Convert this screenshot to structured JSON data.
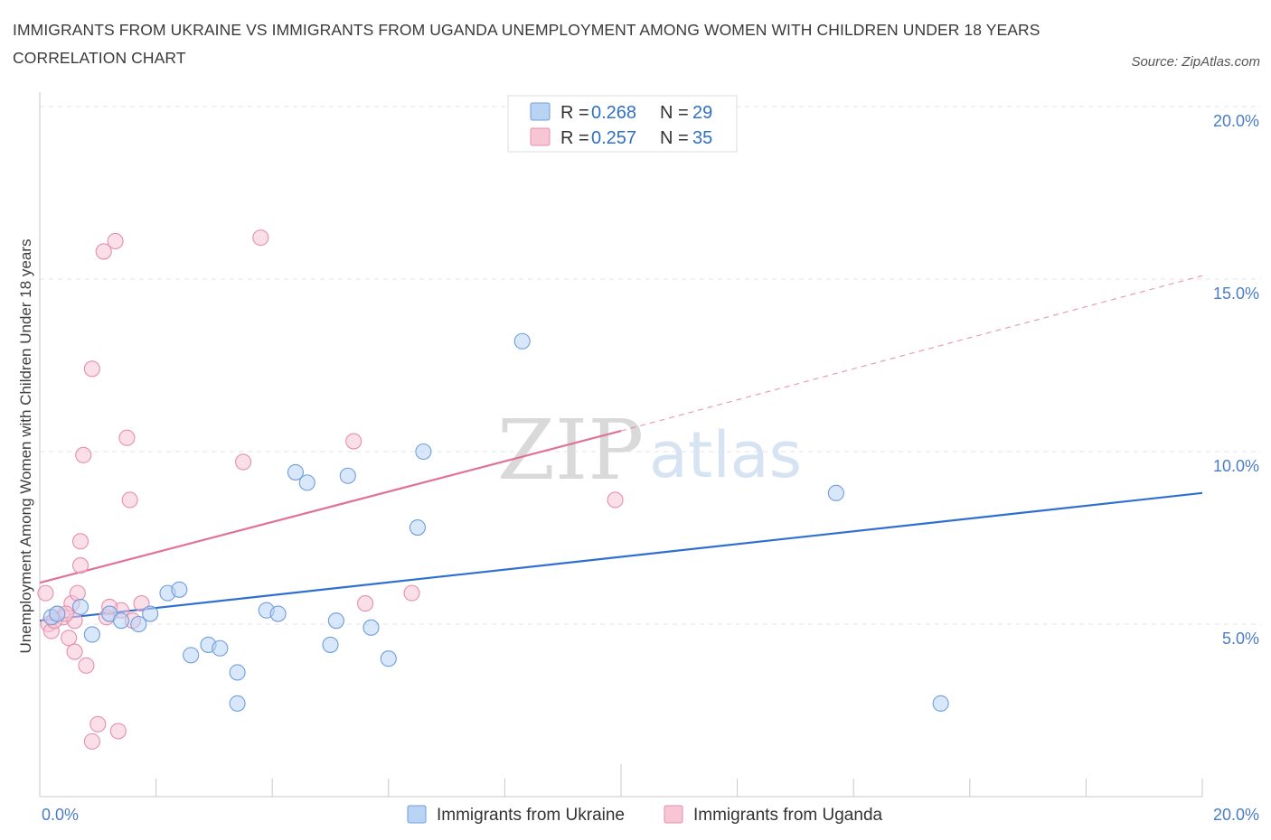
{
  "title": "IMMIGRANTS FROM UKRAINE VS IMMIGRANTS FROM UGANDA UNEMPLOYMENT AMONG WOMEN WITH CHILDREN UNDER 18 YEARS CORRELATION CHART",
  "source": "Source: ZipAtlas.com",
  "watermark": {
    "zip": "ZIP",
    "atlas": "atlas"
  },
  "colors": {
    "ukraine_fill": "#b9d3f5",
    "ukraine_stroke": "#6f9ed9",
    "ukraine_line": "#2f6fd0",
    "uganda_fill": "#f8c5d5",
    "uganda_stroke": "#e58fab",
    "uganda_line": "#e0719a",
    "grid": "#e3e3e3",
    "axis_label": "#4a7cc7"
  },
  "legend": {
    "ukraine": {
      "r_label": "R = ",
      "r_value": "0.268",
      "n_label": "N = ",
      "n_value": "29"
    },
    "uganda": {
      "r_label": "R = ",
      "r_value": "0.257",
      "n_label": "N = ",
      "n_value": "35"
    }
  },
  "chart_data": {
    "type": "scatter",
    "title": "IMMIGRANTS FROM UKRAINE VS IMMIGRANTS FROM UGANDA UNEMPLOYMENT AMONG WOMEN WITH CHILDREN UNDER 18 YEARS CORRELATION CHART",
    "xlabel": "",
    "ylabel": "Unemployment Among Women with Children Under 18 years",
    "xlim": [
      0,
      20
    ],
    "ylim": [
      0,
      20
    ],
    "x_tick_labels": [
      "0.0%",
      "20.0%"
    ],
    "y_tick_labels": [
      "5.0%",
      "10.0%",
      "15.0%",
      "20.0%"
    ],
    "y_ticks": [
      5,
      10,
      15,
      20
    ],
    "series": [
      {
        "name": "Immigrants from Ukraine",
        "color": "#6f9ed9",
        "points": [
          [
            0.2,
            5.2
          ],
          [
            0.3,
            5.3
          ],
          [
            0.7,
            5.5
          ],
          [
            0.9,
            4.7
          ],
          [
            1.2,
            5.3
          ],
          [
            1.4,
            5.1
          ],
          [
            1.7,
            5.0
          ],
          [
            1.9,
            5.3
          ],
          [
            2.2,
            5.9
          ],
          [
            2.4,
            6.0
          ],
          [
            2.6,
            4.1
          ],
          [
            2.9,
            4.4
          ],
          [
            3.1,
            4.3
          ],
          [
            3.4,
            3.6
          ],
          [
            3.4,
            2.7
          ],
          [
            3.9,
            5.4
          ],
          [
            4.1,
            5.3
          ],
          [
            4.4,
            9.4
          ],
          [
            4.6,
            9.1
          ],
          [
            5.0,
            4.4
          ],
          [
            5.1,
            5.1
          ],
          [
            5.3,
            9.3
          ],
          [
            5.7,
            4.9
          ],
          [
            6.0,
            4.0
          ],
          [
            6.5,
            7.8
          ],
          [
            6.6,
            10.0
          ],
          [
            8.3,
            13.2
          ],
          [
            13.7,
            8.8
          ],
          [
            15.5,
            2.7
          ]
        ],
        "trend": {
          "x0": 0,
          "y0": 5.1,
          "x1": 20,
          "y1": 8.8
        }
      },
      {
        "name": "Immigrants from Uganda",
        "color": "#e58fab",
        "points": [
          [
            0.1,
            5.9
          ],
          [
            0.15,
            5.0
          ],
          [
            0.2,
            4.8
          ],
          [
            0.3,
            5.3
          ],
          [
            0.4,
            5.2
          ],
          [
            0.5,
            4.6
          ],
          [
            0.55,
            5.6
          ],
          [
            0.6,
            5.1
          ],
          [
            0.6,
            4.2
          ],
          [
            0.7,
            6.7
          ],
          [
            0.7,
            7.4
          ],
          [
            0.75,
            9.9
          ],
          [
            0.8,
            3.8
          ],
          [
            0.9,
            1.6
          ],
          [
            0.9,
            12.4
          ],
          [
            1.0,
            2.1
          ],
          [
            1.1,
            15.8
          ],
          [
            1.15,
            5.2
          ],
          [
            1.3,
            16.1
          ],
          [
            1.35,
            1.9
          ],
          [
            1.5,
            10.4
          ],
          [
            1.55,
            8.6
          ],
          [
            1.6,
            5.1
          ],
          [
            1.75,
            5.6
          ],
          [
            1.4,
            5.4
          ],
          [
            3.5,
            9.7
          ],
          [
            3.8,
            16.2
          ],
          [
            5.4,
            10.3
          ],
          [
            5.6,
            5.6
          ],
          [
            6.4,
            5.9
          ],
          [
            9.9,
            8.6
          ],
          [
            0.25,
            5.1
          ],
          [
            0.45,
            5.3
          ],
          [
            1.2,
            5.5
          ],
          [
            0.65,
            5.9
          ]
        ],
        "trend": {
          "x0": 0,
          "y0": 6.2,
          "x1": 10.0,
          "y1": 10.6
        },
        "trend_dashed": {
          "x0": 10.0,
          "y0": 10.6,
          "x1": 20,
          "y1": 15.1
        }
      }
    ]
  },
  "bottom_legend": {
    "ukraine_label": "Immigrants from Ukraine",
    "uganda_label": "Immigrants from Uganda"
  }
}
